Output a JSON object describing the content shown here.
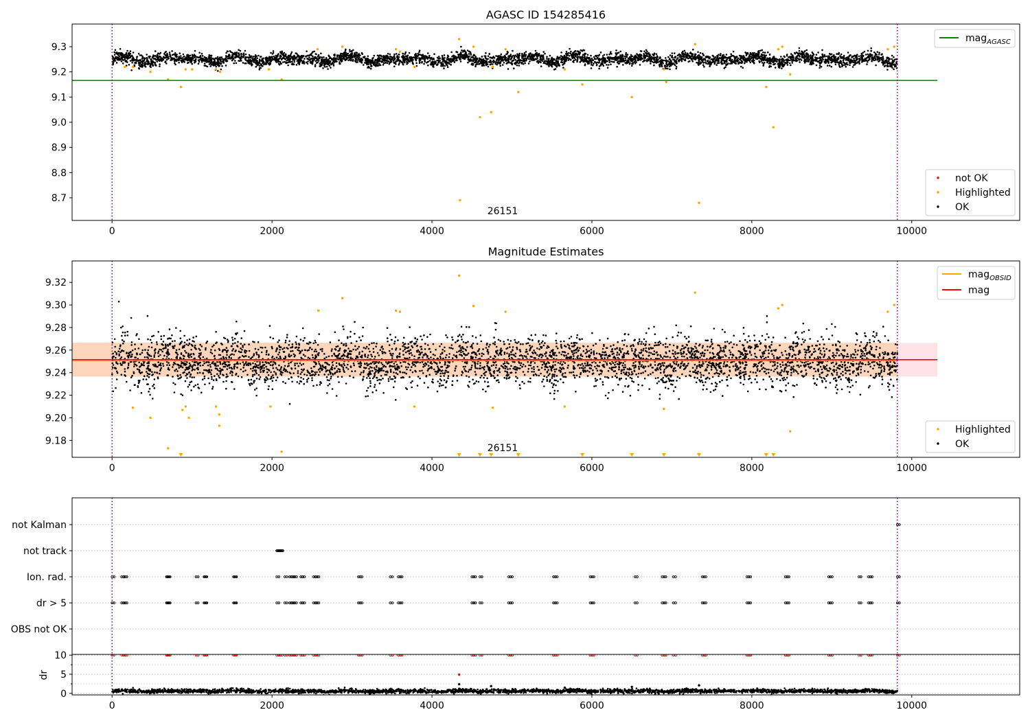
{
  "chart_data": [
    {
      "type": "scatter",
      "title": "AGASC ID 154285416",
      "xlabel": "",
      "ylabel": "",
      "xlim": [
        -500,
        11350
      ],
      "ylim": [
        8.61,
        9.39
      ],
      "xticks": [
        0,
        2000,
        4000,
        6000,
        8000,
        10000
      ],
      "yticks": [
        8.7,
        8.8,
        8.9,
        9.0,
        9.1,
        9.2,
        9.3
      ],
      "ytick_decimals": 1,
      "grid": false,
      "vlines": [
        0,
        9820
      ],
      "annotation": {
        "text": "26151",
        "x": 4720,
        "y": 8.645
      },
      "hlines": [
        {
          "name": "mag",
          "subscript": "AGASC",
          "y": 9.166,
          "color": "#008000",
          "x_end": 10320
        }
      ],
      "ok_band": {
        "mean": 9.25,
        "amplitude": 0.014,
        "noise": 0.012,
        "x_end": 9820
      },
      "series": [
        {
          "name": "not OK",
          "color": "#ff0000",
          "points": []
        },
        {
          "name": "Highlighted",
          "color": "#ffa500",
          "points": [
            [
              160,
              9.22
            ],
            [
              260,
              9.22
            ],
            [
              480,
              9.2
            ],
            [
              700,
              9.17
            ],
            [
              860,
              9.14
            ],
            [
              920,
              9.21
            ],
            [
              1000,
              9.21
            ],
            [
              1300,
              9.21
            ],
            [
              1350,
              9.2
            ],
            [
              1960,
              9.21
            ],
            [
              2120,
              9.17
            ],
            [
              2570,
              9.29
            ],
            [
              2880,
              9.3
            ],
            [
              3550,
              9.29
            ],
            [
              3600,
              9.28
            ],
            [
              3780,
              9.22
            ],
            [
              4340,
              9.33
            ],
            [
              4350,
              8.69
            ],
            [
              4520,
              9.3
            ],
            [
              4600,
              9.02
            ],
            [
              4740,
              9.04
            ],
            [
              4760,
              9.22
            ],
            [
              4920,
              9.29
            ],
            [
              5080,
              9.12
            ],
            [
              5660,
              9.21
            ],
            [
              5880,
              9.15
            ],
            [
              6500,
              9.1
            ],
            [
              6900,
              9.21
            ],
            [
              6930,
              9.16
            ],
            [
              7290,
              9.31
            ],
            [
              7340,
              8.68
            ],
            [
              8180,
              9.14
            ],
            [
              8270,
              8.98
            ],
            [
              8330,
              9.29
            ],
            [
              8380,
              9.3
            ],
            [
              8480,
              9.19
            ],
            [
              9700,
              9.29
            ],
            [
              9780,
              9.3
            ]
          ]
        },
        {
          "name": "OK",
          "color": "#000000",
          "points": []
        }
      ],
      "legend_lines": [
        {
          "label": "mag",
          "subscript": "AGASC",
          "color": "#008000"
        }
      ],
      "legend_points": [
        {
          "label": "not OK",
          "color": "#ff0000"
        },
        {
          "label": "Highlighted",
          "color": "#ffa500"
        },
        {
          "label": "OK",
          "color": "#000000"
        }
      ]
    },
    {
      "type": "scatter",
      "title": "Magnitude Estimates",
      "xlabel": "",
      "ylabel": "",
      "xlim": [
        -500,
        11350
      ],
      "ylim": [
        9.165,
        9.339
      ],
      "xticks": [
        0,
        2000,
        4000,
        6000,
        8000,
        10000
      ],
      "yticks": [
        9.18,
        9.2,
        9.22,
        9.24,
        9.26,
        9.28,
        9.3,
        9.32
      ],
      "ytick_decimals": 2,
      "grid": false,
      "vlines": [
        0,
        9820
      ],
      "annotation": {
        "text": "26151",
        "x": 4720,
        "y": 9.173
      },
      "hlines": [
        {
          "name": "mag",
          "y": 9.2515,
          "color": "#ff0000",
          "x_end": 10320
        }
      ],
      "bands": [
        {
          "y0": 9.2365,
          "y1": 9.2665,
          "color": "#ffc0cb",
          "x_end": 10320
        },
        {
          "y0": 9.2365,
          "y1": 9.2665,
          "color": "#fdd3b5",
          "x_end": 9820
        }
      ],
      "obsid_line": {
        "y": 9.2505,
        "color": "#ffa500",
        "x_end": 9820
      },
      "ok_band": {
        "mean": 9.25,
        "amplitude": 0.006,
        "noise": 0.011,
        "x_end": 9820
      },
      "series": [
        {
          "name": "Highlighted",
          "color": "#ffa500",
          "points": [
            [
              260,
              9.209
            ],
            [
              480,
              9.2
            ],
            [
              700,
              9.173
            ],
            [
              880,
              9.207
            ],
            [
              920,
              9.21
            ],
            [
              960,
              9.2
            ],
            [
              1300,
              9.21
            ],
            [
              1340,
              9.203
            ],
            [
              1340,
              9.193
            ],
            [
              1980,
              9.21
            ],
            [
              2120,
              9.17
            ],
            [
              2580,
              9.295
            ],
            [
              2880,
              9.306
            ],
            [
              3550,
              9.295
            ],
            [
              3600,
              9.294
            ],
            [
              3780,
              9.21
            ],
            [
              4340,
              9.326
            ],
            [
              4520,
              9.299
            ],
            [
              4760,
              9.209
            ],
            [
              4920,
              9.294
            ],
            [
              5660,
              9.21
            ],
            [
              6900,
              9.208
            ],
            [
              7290,
              9.311
            ],
            [
              8330,
              9.297
            ],
            [
              8380,
              9.3
            ],
            [
              8480,
              9.188
            ],
            [
              9700,
              9.294
            ],
            [
              9780,
              9.3
            ]
          ]
        },
        {
          "name": "OK",
          "color": "#000000",
          "points": []
        }
      ],
      "offscale_markers": {
        "color": "#ffa500",
        "x": [
          860,
          4340,
          4600,
          4740,
          5080,
          5880,
          6500,
          6900,
          7340,
          8180,
          8270
        ]
      },
      "legend_lines": [
        {
          "label": "mag",
          "subscript": "OBSID",
          "color": "#ffa500"
        },
        {
          "label": "mag",
          "color": "#ff0000"
        }
      ],
      "legend_points": [
        {
          "label": "Highlighted",
          "color": "#ffa500"
        },
        {
          "label": "OK",
          "color": "#000000"
        }
      ]
    },
    {
      "type": "scatter",
      "title": "",
      "xlabel": "",
      "ylabel": "",
      "xlim": [
        -500,
        11350
      ],
      "xticks": [
        0,
        2000,
        4000,
        6000,
        8000,
        10000
      ],
      "grid": true,
      "vlines": [
        0,
        9820
      ],
      "categories": [
        "not Kalman",
        "not track",
        "Ion. rad.",
        "dr > 5",
        "OBS not OK"
      ],
      "flags": {
        "not Kalman": [
          9820
        ],
        "not track": [
          2060,
          2070,
          2080,
          2090,
          2100,
          2110
        ],
        "Ion. rad.": [
          0,
          120,
          140,
          160,
          680,
          690,
          700,
          1050,
          1150,
          1160,
          1520,
          1530,
          2060,
          2160,
          2220,
          2240,
          2260,
          2280,
          2360,
          2380,
          2520,
          2540,
          2560,
          3080,
          3100,
          3480,
          3580,
          3600,
          4500,
          4520,
          4600,
          4960,
          4980,
          5520,
          5540,
          5980,
          6000,
          6540,
          6880,
          6900,
          7020,
          7380,
          7400,
          7940,
          7960,
          8420,
          8440,
          8960,
          8980,
          9340,
          9460,
          9480,
          9820
        ],
        "dr > 5": [
          0,
          120,
          140,
          160,
          680,
          690,
          700,
          1050,
          1150,
          1160,
          1520,
          1530,
          2060,
          2160,
          2220,
          2240,
          2260,
          2280,
          2360,
          2380,
          2520,
          2540,
          2560,
          3080,
          3100,
          3480,
          3580,
          3600,
          4500,
          4520,
          4600,
          4960,
          4980,
          5520,
          5540,
          5980,
          6000,
          6540,
          6880,
          6900,
          7020,
          7380,
          7400,
          7940,
          7960,
          8420,
          8440,
          8960,
          8980,
          9340,
          9460,
          9480,
          9820
        ],
        "OBS not OK": []
      }
    },
    {
      "type": "scatter",
      "title": "",
      "xlabel": "",
      "ylabel": "dr",
      "xlim": [
        -500,
        11350
      ],
      "ylim": [
        -0.4,
        10.2
      ],
      "xticks": [
        0,
        2000,
        4000,
        6000,
        8000,
        10000
      ],
      "yticks": [
        0,
        5,
        10
      ],
      "grid": true,
      "vlines": [
        0,
        9820
      ],
      "ok_band": {
        "mean": 0.6,
        "amplitude": 0.15,
        "noise": 0.25,
        "x_end": 9820
      },
      "series": [
        {
          "name": "dr > 5",
          "color": "#ff0000",
          "points": [
            [
              4340,
              4.9
            ]
          ],
          "clipped_at_top_x": [
            0,
            120,
            140,
            160,
            680,
            690,
            700,
            1050,
            1150,
            1160,
            1520,
            1530,
            2060,
            2080,
            2100,
            2160,
            2220,
            2240,
            2260,
            2280,
            2360,
            2380,
            2520,
            2540,
            2560,
            3080,
            3100,
            3480,
            3580,
            3600,
            4500,
            4520,
            4600,
            4960,
            4980,
            5520,
            5540,
            5980,
            6000,
            6540,
            6880,
            6900,
            7020,
            7380,
            7400,
            7940,
            7960,
            8420,
            8440,
            8960,
            8980,
            9340,
            9460,
            9480,
            9820
          ]
        },
        {
          "name": "OK",
          "color": "#000000",
          "points": [
            [
              4740,
              1.9
            ],
            [
              4340,
              2.4
            ],
            [
              7340,
              2.1
            ],
            [
              5660,
              1.5
            ],
            [
              6500,
              1.7
            ]
          ]
        }
      ]
    }
  ]
}
